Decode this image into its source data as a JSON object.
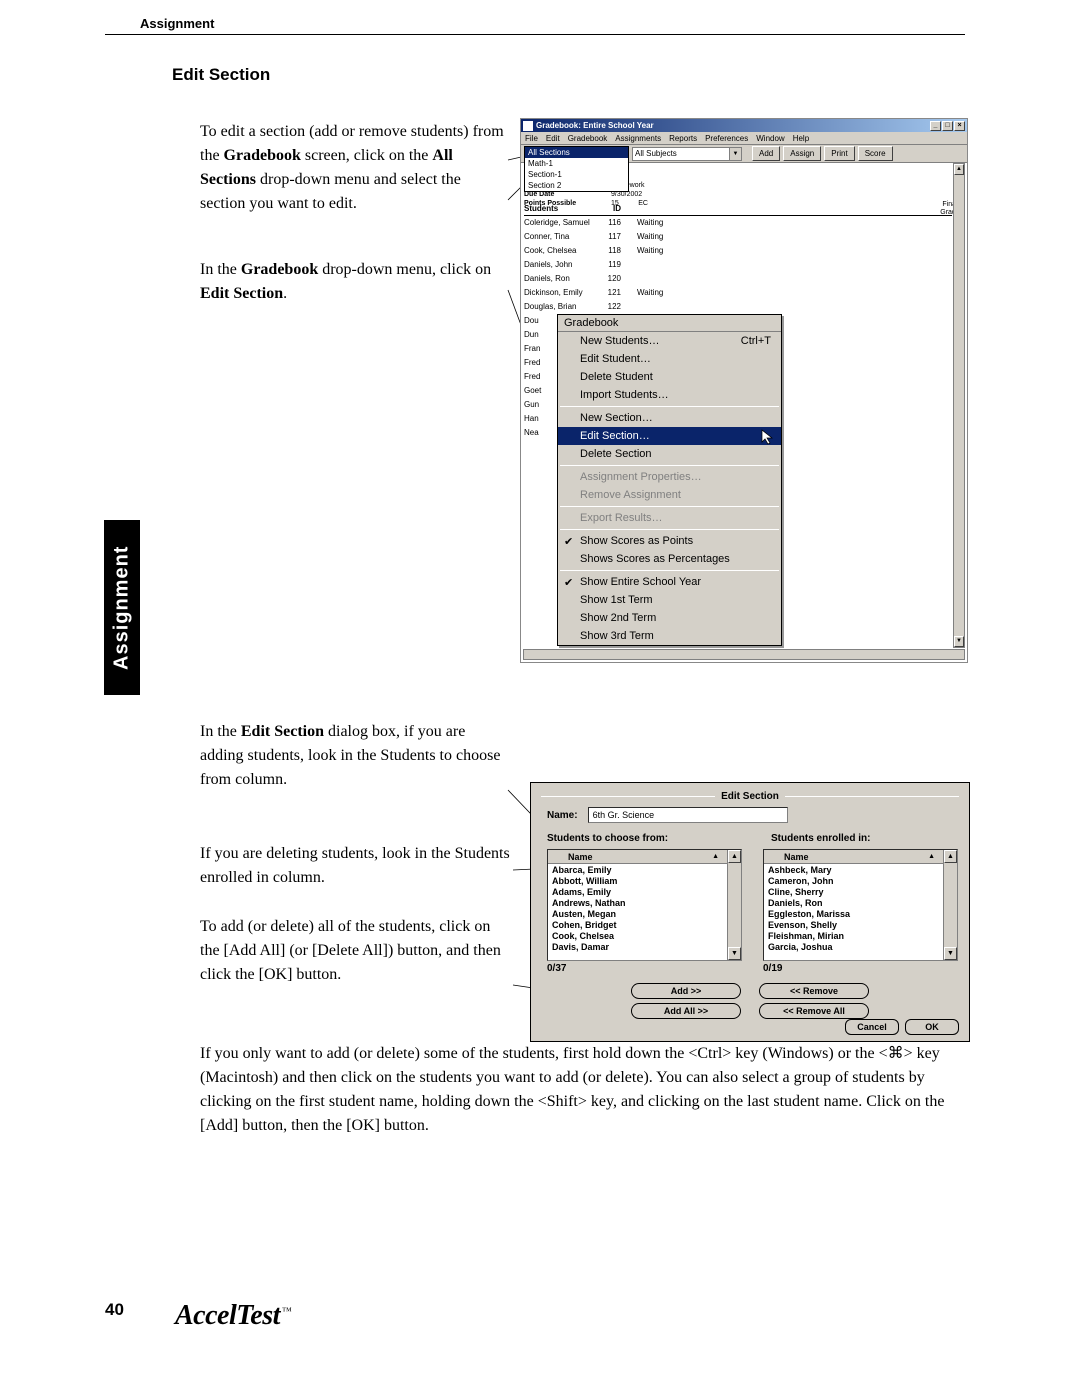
{
  "header": {
    "chapter": "Assignment"
  },
  "section_title": "Edit Section",
  "side_tab": "Assignment",
  "page_number": "40",
  "footer_brand": "AccelTest",
  "footer_tm": "™",
  "paragraphs": {
    "p1_a": "To edit a section (add or remove students) from the ",
    "p1_b": "Gradebook",
    "p1_c": " screen, click on the ",
    "p1_d": "All Sections",
    "p1_e": " drop-down menu and select the section you want to edit.",
    "p2_a": "In the ",
    "p2_b": "Gradebook",
    "p2_c": " drop-down menu, click on ",
    "p2_d": "Edit Section",
    "p2_e": ".",
    "p3_a": "In the ",
    "p3_b": "Edit Section",
    "p3_c": " dialog box, if you are adding students, look in the Students to choose from column.",
    "p4": "If you are deleting students, look in the Students enrolled in column.",
    "p5": "To add (or delete) all of the students, click on the [Add All] (or [Delete All]) button, and then click the [OK] button.",
    "p6": "If you only want to add (or delete) some of the students, first hold down the <Ctrl> key (Windows) or the <⌘> key (Macintosh) and then click on the students you want to add (or delete). You can also select a group of students by clicking on the first student name, holding down the <Shift> key, and clicking on the last student name. Click on the [Add] button, then the [OK] button."
  },
  "shot1": {
    "window_title": "Gradebook: Entire School Year",
    "menus": [
      "File",
      "Edit",
      "Gradebook",
      "Assignments",
      "Reports",
      "Preferences",
      "Window",
      "Help"
    ],
    "combo_sections": "All Sections",
    "combo_subjects": "All Subjects",
    "toolbar_buttons": [
      "Add",
      "Assign",
      "Print",
      "Score"
    ],
    "sections_list": [
      "All Sections",
      "Math-1",
      "Section-1",
      "Section 2"
    ],
    "info_labels": [
      "Title",
      "Assignment ID",
      "Category",
      "Due Date",
      "Points Possible"
    ],
    "info_values": [
      "",
      "100",
      "Homework",
      "9/30/2002",
      "15          EC"
    ],
    "grid_header": [
      "Students",
      "ID"
    ],
    "final_grade": "Final Grade",
    "rows": [
      {
        "name": "Coleridge, Samuel",
        "id": "116",
        "status": "Waiting"
      },
      {
        "name": "Conner, Tina",
        "id": "117",
        "status": "Waiting"
      },
      {
        "name": "Cook, Chelsea",
        "id": "118",
        "status": "Waiting"
      },
      {
        "name": "Daniels, John",
        "id": "119",
        "status": ""
      },
      {
        "name": "Daniels, Ron",
        "id": "120",
        "status": ""
      },
      {
        "name": "Dickinson, Emily",
        "id": "121",
        "status": "Waiting"
      },
      {
        "name": "Douglas, Brian",
        "id": "122",
        "status": ""
      }
    ],
    "row_stubs": [
      "Dou",
      "Dun",
      "Fran",
      "Fred",
      "Fred",
      "Goet",
      "Gun",
      "",
      "Han",
      "",
      "Nea"
    ],
    "menu_title": "Gradebook",
    "menu_items": [
      {
        "label": "New Students…",
        "shortcut": "Ctrl+T",
        "disabled": false
      },
      {
        "label": "Edit Student…",
        "disabled": false
      },
      {
        "label": "Delete Student",
        "disabled": false
      },
      {
        "label": "Import Students…",
        "disabled": false
      },
      {
        "sep": true
      },
      {
        "label": "New Section…",
        "disabled": false
      },
      {
        "label": "Edit Section…",
        "highlight": true
      },
      {
        "label": "Delete Section",
        "disabled": false
      },
      {
        "sep": true
      },
      {
        "label": "Assignment Properties…",
        "disabled": true
      },
      {
        "label": "Remove Assignment",
        "disabled": true
      },
      {
        "sep": true
      },
      {
        "label": "Export Results…",
        "disabled": true
      },
      {
        "sep": true
      },
      {
        "label": "Show Scores as Points",
        "check": true
      },
      {
        "label": "Shows Scores as Percentages"
      },
      {
        "sep": true
      },
      {
        "label": "Show Entire School Year",
        "check": true
      },
      {
        "label": "Show 1st Term"
      },
      {
        "label": "Show 2nd Term"
      },
      {
        "label": "Show 3rd Term"
      }
    ]
  },
  "shot2": {
    "dialog_title": "Edit Section",
    "name_label": "Name:",
    "name_value": "6th Gr. Science",
    "left_header": "Students to choose from:",
    "right_header": "Students enrolled in:",
    "col_name": "Name",
    "left_list": [
      "Abarca, Emily",
      "Abbott, William",
      "Adams, Emily",
      "Andrews, Nathan",
      "Austen, Megan",
      "Cohen, Bridget",
      "Cook, Chelsea",
      "Davis, Damar"
    ],
    "right_list": [
      "Ashbeck, Mary",
      "Cameron, John",
      "Cline, Sherry",
      "Daniels, Ron",
      "Eggleston, Marissa",
      "Evenson, Shelly",
      "Fleishman, Mirian",
      "Garcia, Joshua"
    ],
    "left_count": "0/37",
    "right_count": "0/19",
    "btn_add": "Add >>",
    "btn_addall": "Add All >>",
    "btn_remove": "<< Remove",
    "btn_removeall": "<< Remove All",
    "btn_cancel": "Cancel",
    "btn_ok": "OK"
  }
}
